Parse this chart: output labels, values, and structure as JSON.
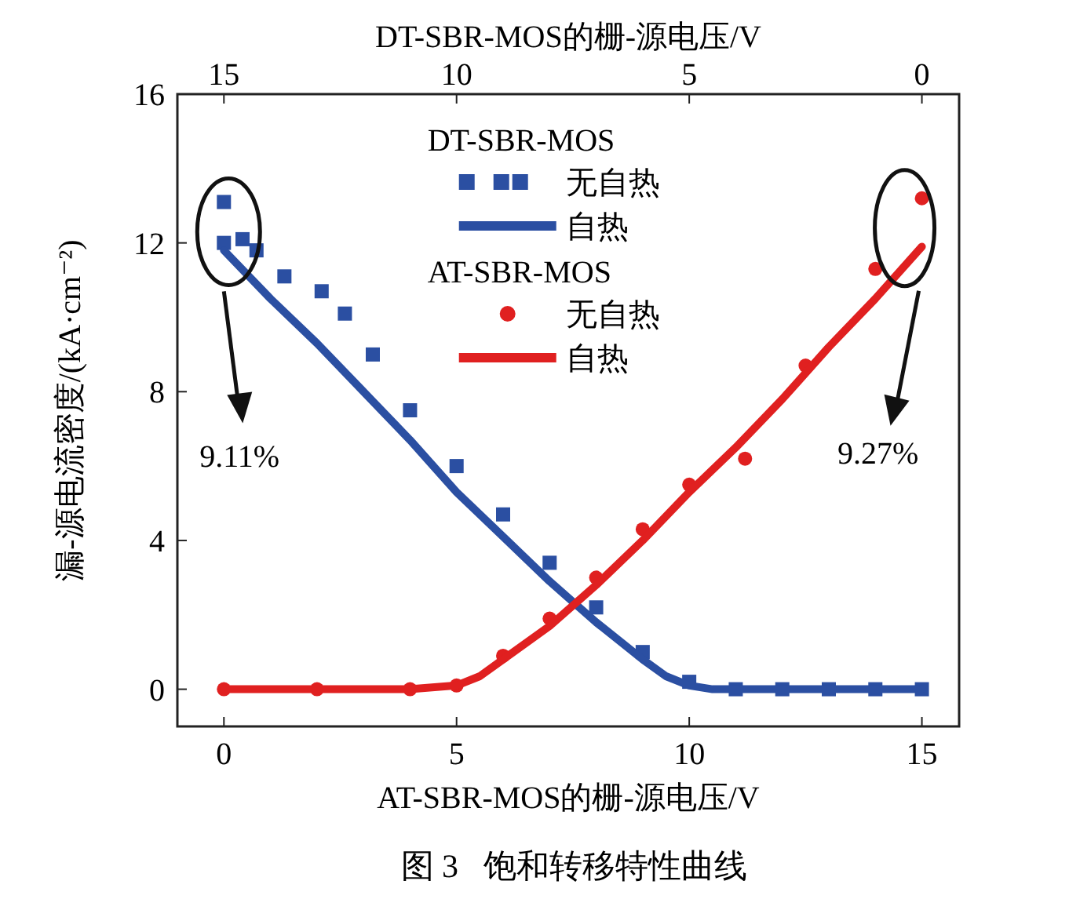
{
  "chart_data": {
    "type": "line",
    "xlabel": "AT-SBR-MOS的栅-源电压/V",
    "x2label": "DT-SBR-MOS的栅-源电压/V",
    "ylabel": "漏-源电流密度/(kA·cm⁻²)",
    "xlim": [
      -1,
      15.8
    ],
    "xticks": [
      0,
      5,
      10,
      15
    ],
    "x2lim": [
      16,
      -0.8
    ],
    "x2ticks": [
      15,
      10,
      5,
      0
    ],
    "ylim": [
      -1,
      16
    ],
    "yticks": [
      0,
      4,
      8,
      12,
      16
    ],
    "grid": false,
    "legend": "top",
    "annotations": [
      "DT-SBR-MOS",
      "AT-SBR-MOS",
      "9.11%",
      "9.27%",
      "图 3   饱和转移特性曲线"
    ],
    "series": [
      {
        "name": "无自热",
        "type": "scatter",
        "axis": "x2",
        "marker": "square",
        "color": "#2b4fa2",
        "x": [
          15,
          15,
          14.6,
          14.3,
          13.7,
          12.9,
          12.4,
          11.8,
          11,
          10,
          9,
          8,
          7,
          6,
          5,
          4,
          3,
          2,
          1,
          0
        ],
        "values": [
          13.1,
          12,
          12.1,
          11.8,
          11.1,
          10.7,
          10.1,
          9,
          7.5,
          6,
          4.7,
          3.4,
          2.2,
          1,
          0.2,
          0,
          0,
          0,
          0,
          0
        ]
      },
      {
        "name": "自热",
        "axis": "x2",
        "marker": "none",
        "color": "#2b4fa2",
        "x": [
          15,
          14,
          13,
          12,
          11,
          10,
          9,
          8,
          7,
          6.5,
          6,
          5.5,
          5,
          4.5,
          0
        ],
        "values": [
          11.8,
          10.5,
          9.3,
          8,
          6.7,
          5.3,
          4.1,
          2.9,
          1.8,
          1.3,
          0.8,
          0.35,
          0.1,
          0,
          0
        ]
      },
      {
        "name": "无自热",
        "type": "scatter",
        "marker": "circle",
        "color": "#e02020",
        "x": [
          0,
          2,
          4,
          5,
          6,
          7,
          8,
          9,
          10,
          11.2,
          12.5,
          14,
          15
        ],
        "values": [
          0,
          0,
          0,
          0.1,
          0.9,
          1.9,
          3,
          4.3,
          5.5,
          6.2,
          8.7,
          11.3,
          13.2
        ]
      },
      {
        "name": "自热",
        "marker": "none",
        "color": "#e02020",
        "x": [
          0,
          4,
          5,
          5.5,
          6,
          7,
          8,
          9,
          10,
          11,
          12,
          13,
          14,
          15
        ],
        "values": [
          0,
          0,
          0.1,
          0.35,
          0.8,
          1.7,
          2.8,
          4,
          5.3,
          6.5,
          7.8,
          9.2,
          10.5,
          11.9
        ]
      }
    ]
  }
}
